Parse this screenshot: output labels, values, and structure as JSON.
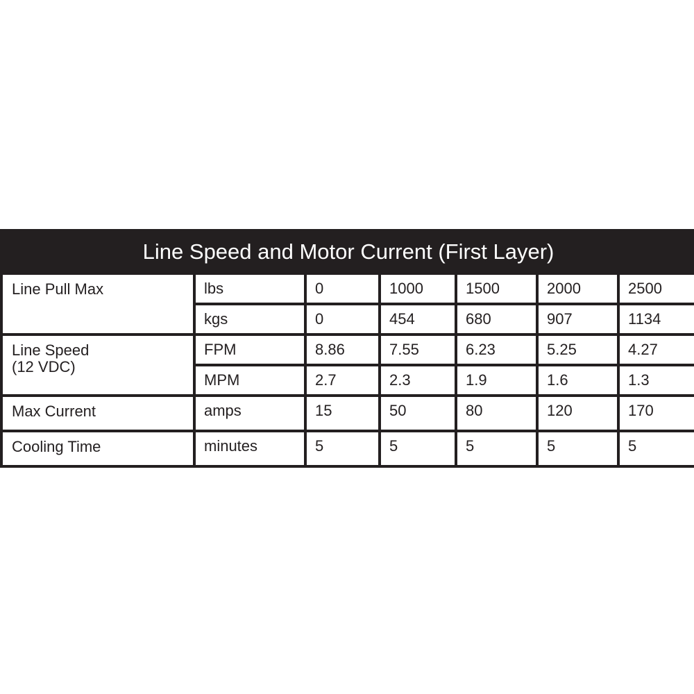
{
  "title": "Line Speed and Motor Current (First Layer)",
  "rows": [
    {
      "group": "Line Pull Max",
      "unit": "lbs",
      "values": [
        "0",
        "1000",
        "1500",
        "2000",
        "2500"
      ]
    },
    {
      "unit": "kgs",
      "values": [
        "0",
        "454",
        "680",
        "907",
        "1134"
      ]
    },
    {
      "group": "Line Speed",
      "group2": "(12 VDC)",
      "unit": "FPM",
      "values": [
        "8.86",
        "7.55",
        "6.23",
        "5.25",
        "4.27"
      ]
    },
    {
      "unit": "MPM",
      "values": [
        "2.7",
        "2.3",
        "1.9",
        "1.6",
        "1.3"
      ]
    },
    {
      "group": "Max Current",
      "unit": "amps",
      "values": [
        "15",
        "50",
        "80",
        "120",
        "170"
      ]
    },
    {
      "group": "Cooling Time",
      "unit": "minutes",
      "values": [
        "5",
        "5",
        "5",
        "5",
        "5"
      ]
    }
  ]
}
